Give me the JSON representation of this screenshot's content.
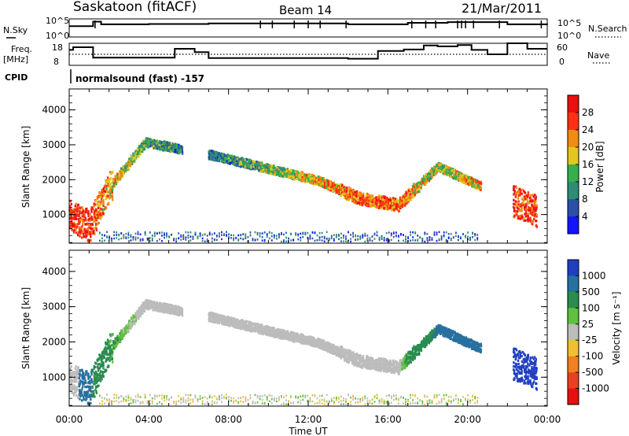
{
  "header": {
    "station": "Saskatoon (fitACF)",
    "beam": "Beam 14",
    "date": "21/Mar/2011"
  },
  "sky_panel": {
    "left_label": "N.Sky",
    "left_ticks": [
      "10^5",
      "10^0"
    ],
    "right_ticks": [
      "10^5",
      "10^0"
    ],
    "right_label": "N.Search",
    "steps": [
      {
        "t": 0.0,
        "v": 0.6
      },
      {
        "t": 1.2,
        "v": 0.85
      },
      {
        "t": 1.6,
        "v": 0.7
      },
      {
        "t": 4.0,
        "v": 0.72
      },
      {
        "t": 7.0,
        "v": 0.75
      },
      {
        "t": 14.0,
        "v": 0.7
      },
      {
        "t": 17.0,
        "v": 0.78
      },
      {
        "t": 19.0,
        "v": 0.82
      },
      {
        "t": 22.0,
        "v": 0.7
      },
      {
        "t": 24.0,
        "v": 0.68
      }
    ],
    "spikes": [
      1.3,
      9.6,
      10.2,
      11.3,
      12.0,
      12.6,
      13.9,
      17.2,
      17.9,
      18.4,
      19.5,
      19.7,
      19.9,
      20.3,
      21.6,
      23.7
    ]
  },
  "freq_panel": {
    "left_label_1": "Freq.",
    "left_label_2": "[MHz]",
    "left_ticks": [
      "18",
      "8"
    ],
    "right_ticks": [
      "60",
      "0"
    ],
    "right_label": "Nave",
    "steps": [
      {
        "t": 0.0,
        "v": 0.7
      },
      {
        "t": 0.2,
        "v": 0.82
      },
      {
        "t": 1.2,
        "v": 0.35
      },
      {
        "t": 5.3,
        "v": 0.75
      },
      {
        "t": 6.3,
        "v": 0.6
      },
      {
        "t": 7.0,
        "v": 0.33
      },
      {
        "t": 14.0,
        "v": 0.3
      },
      {
        "t": 15.5,
        "v": 0.65
      },
      {
        "t": 16.8,
        "v": 0.72
      },
      {
        "t": 17.8,
        "v": 0.9
      },
      {
        "t": 18.5,
        "v": 0.86
      },
      {
        "t": 19.5,
        "v": 0.92
      },
      {
        "t": 20.2,
        "v": 0.7
      },
      {
        "t": 21.0,
        "v": 0.5
      },
      {
        "t": 22.0,
        "v": 1.0
      },
      {
        "t": 23.0,
        "v": 0.75
      },
      {
        "t": 24.0,
        "v": 0.75
      }
    ],
    "nave_level": 0.5
  },
  "cpid": {
    "label": "CPID",
    "text": "normalsound (fast) -157"
  },
  "chart_data": [
    {
      "type": "heatmap",
      "panel": "power",
      "ylabel": "Slant Range [km]",
      "xlabel": "",
      "x_ticks": [
        "00:00",
        "04:00",
        "08:00",
        "12:00",
        "16:00",
        "20:00",
        "00:00"
      ],
      "y_ticks": [
        "1000",
        "2000",
        "3000",
        "4000"
      ],
      "xlim_hours": [
        0,
        24
      ],
      "ylim_km": [
        180,
        4600
      ],
      "colorbar": {
        "label": "Power [dB]",
        "ticks": [
          "28",
          "24",
          "20",
          "16",
          "12",
          "8",
          "4"
        ],
        "colors_bottom_to_top": [
          "#1414ff",
          "#2c50a8",
          "#2f8c74",
          "#36b04c",
          "#e0c820",
          "#f08c14",
          "#ff3014",
          "#e81010"
        ]
      },
      "features": [
        {
          "t": 0.0,
          "range_km": 1000,
          "power_db": 28
        },
        {
          "t": 1.0,
          "range_km": 700,
          "power_db": 28
        },
        {
          "t": 2.0,
          "range_km": 1800,
          "power_db": 20
        },
        {
          "t": 3.8,
          "range_km": 3100,
          "power_db": 12
        },
        {
          "t": 7.0,
          "range_km": 2750,
          "power_db": 8
        },
        {
          "t": 12.5,
          "range_km": 2000,
          "power_db": 20
        },
        {
          "t": 14.5,
          "range_km": 1500,
          "power_db": 24
        },
        {
          "t": 16.5,
          "range_km": 1300,
          "power_db": 24
        },
        {
          "t": 18.5,
          "range_km": 2400,
          "power_db": 16
        },
        {
          "t": 23.5,
          "range_km": 1100,
          "power_db": 28
        }
      ]
    },
    {
      "type": "heatmap",
      "panel": "velocity",
      "ylabel": "Slant Range [km]",
      "xlabel": "Time UT",
      "x_ticks": [
        "00:00",
        "04:00",
        "08:00",
        "12:00",
        "16:00",
        "20:00",
        "00:00"
      ],
      "y_ticks": [
        "1000",
        "2000",
        "3000",
        "4000"
      ],
      "xlim_hours": [
        0,
        24
      ],
      "ylim_km": [
        180,
        4600
      ],
      "colorbar": {
        "label": "Velocity [m s⁻¹]",
        "ticks": [
          "1000",
          "500",
          "100",
          "25",
          "-25",
          "-100",
          "-500",
          "-1000"
        ],
        "colors_top_to_bottom": [
          "#2040c0",
          "#2870a0",
          "#2a8c50",
          "#60c040",
          "#bcbcbc",
          "#f0c030",
          "#f08020",
          "#e84020",
          "#e81010"
        ]
      },
      "features": [
        {
          "t": 0.5,
          "range_km": 1100,
          "velocity_ms": 500
        },
        {
          "t": 1.5,
          "range_km": 700,
          "velocity_ms": 100
        },
        {
          "t": 3.5,
          "range_km": 2800,
          "velocity_ms": 0
        },
        {
          "t": 10.0,
          "range_km": 2500,
          "velocity_ms": 0
        },
        {
          "t": 16.5,
          "range_km": 1600,
          "velocity_ms": 0
        },
        {
          "t": 23.5,
          "range_km": 1200,
          "velocity_ms": 1000
        }
      ]
    }
  ]
}
